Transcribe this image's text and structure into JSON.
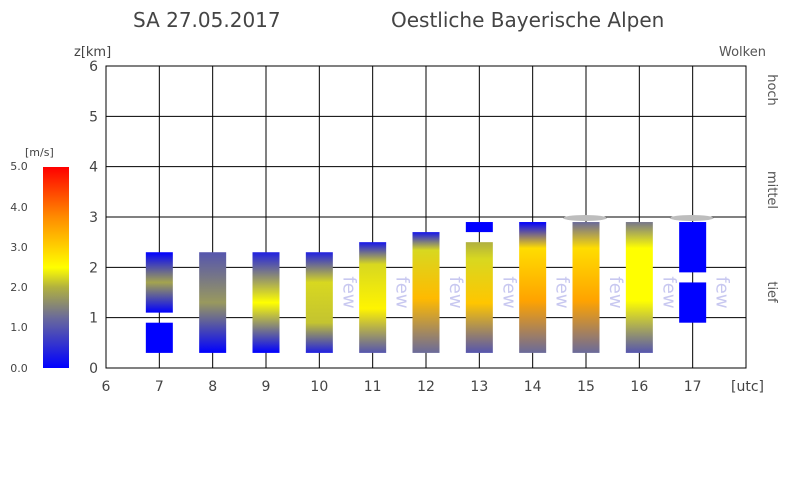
{
  "title": {
    "date": "SA 27.05.2017",
    "region": "Oestliche Bayerische Alpen"
  },
  "legend": {
    "unit": "[m/s]",
    "ticks": [
      "5.0",
      "4.0",
      "3.0",
      "2.0",
      "1.0",
      "0.0"
    ],
    "colors": [
      "#0000ff",
      "#6a6a9a",
      "#b0b040",
      "#ffff00",
      "#ff8c00",
      "#ff0000"
    ]
  },
  "chart_data": {
    "type": "bar",
    "ylabel": "z[km]",
    "xlabel": "[utc]",
    "xlim": [
      6,
      18
    ],
    "ylim": [
      0,
      6
    ],
    "x_ticks": [
      "6",
      "7",
      "8",
      "9",
      "10",
      "11",
      "12",
      "13",
      "14",
      "15",
      "16",
      "17"
    ],
    "y_ticks": [
      "0",
      "1",
      "2",
      "3",
      "4",
      "5",
      "6"
    ],
    "right_labels": {
      "header": "Wolken",
      "high": "hoch",
      "mid": "mittel",
      "low": "tief"
    },
    "grid": true,
    "cloud_label": "few",
    "cloud_marks": [
      10,
      11,
      12,
      13,
      14,
      15,
      16,
      17
    ],
    "cap_marks": [
      15,
      17
    ],
    "columns": [
      {
        "hour": 7,
        "segments": [
          {
            "bottom": 0.3,
            "top": 0.9,
            "stops": [
              [
                0,
                0.0
              ],
              [
                1,
                0.0
              ]
            ]
          },
          {
            "bottom": 1.1,
            "top": 2.3,
            "stops": [
              [
                0,
                0.0
              ],
              [
                0.5,
                1.5
              ],
              [
                1,
                0.0
              ]
            ]
          }
        ]
      },
      {
        "hour": 8,
        "segments": [
          {
            "bottom": 0.3,
            "top": 2.3,
            "stops": [
              [
                0,
                0.0
              ],
              [
                0.5,
                1.4
              ],
              [
                1,
                0.8
              ]
            ]
          }
        ]
      },
      {
        "hour": 9,
        "segments": [
          {
            "bottom": 0.3,
            "top": 2.3,
            "stops": [
              [
                0,
                0.0
              ],
              [
                0.5,
                2.0
              ],
              [
                1,
                0.3
              ]
            ]
          }
        ]
      },
      {
        "hour": 10,
        "segments": [
          {
            "bottom": 0.3,
            "top": 2.3,
            "stops": [
              [
                0,
                0.3
              ],
              [
                0.3,
                1.7
              ],
              [
                0.7,
                1.8
              ],
              [
                1,
                0.3
              ]
            ]
          }
        ]
      },
      {
        "hour": 11,
        "segments": [
          {
            "bottom": 0.3,
            "top": 2.5,
            "stops": [
              [
                0,
                0.8
              ],
              [
                0.4,
                2.1
              ],
              [
                0.8,
                1.8
              ],
              [
                1,
                0.2
              ]
            ]
          }
        ]
      },
      {
        "hour": 12,
        "segments": [
          {
            "bottom": 0.3,
            "top": 2.7,
            "stops": [
              [
                0,
                1.0
              ],
              [
                0.45,
                2.6
              ],
              [
                0.85,
                1.8
              ],
              [
                1,
                0.2
              ]
            ]
          }
        ]
      },
      {
        "hour": 13,
        "segments": [
          {
            "bottom": 0.3,
            "top": 2.5,
            "stops": [
              [
                0,
                0.8
              ],
              [
                0.45,
                2.5
              ],
              [
                0.85,
                1.8
              ],
              [
                1,
                1.6
              ]
            ]
          },
          {
            "bottom": 2.7,
            "top": 2.9,
            "stops": [
              [
                0,
                0.0
              ],
              [
                1,
                0.0
              ]
            ]
          }
        ]
      },
      {
        "hour": 14,
        "segments": [
          {
            "bottom": 0.3,
            "top": 2.9,
            "stops": [
              [
                0,
                1.0
              ],
              [
                0.4,
                2.8
              ],
              [
                0.8,
                2.3
              ],
              [
                1,
                0.0
              ]
            ]
          }
        ]
      },
      {
        "hour": 15,
        "segments": [
          {
            "bottom": 0.3,
            "top": 2.9,
            "stops": [
              [
                0,
                1.0
              ],
              [
                0.4,
                2.8
              ],
              [
                0.8,
                2.3
              ],
              [
                1,
                1.0
              ]
            ]
          }
        ]
      },
      {
        "hour": 16,
        "segments": [
          {
            "bottom": 0.3,
            "top": 2.9,
            "stops": [
              [
                0,
                0.8
              ],
              [
                0.4,
                2.0
              ],
              [
                0.8,
                2.0
              ],
              [
                1,
                1.1
              ]
            ]
          }
        ]
      },
      {
        "hour": 17,
        "segments": [
          {
            "bottom": 0.9,
            "top": 1.7,
            "stops": [
              [
                0,
                0.0
              ],
              [
                1,
                0.0
              ]
            ]
          },
          {
            "bottom": 1.9,
            "top": 2.9,
            "stops": [
              [
                0,
                0.0
              ],
              [
                1,
                0.0
              ]
            ]
          }
        ]
      }
    ]
  }
}
